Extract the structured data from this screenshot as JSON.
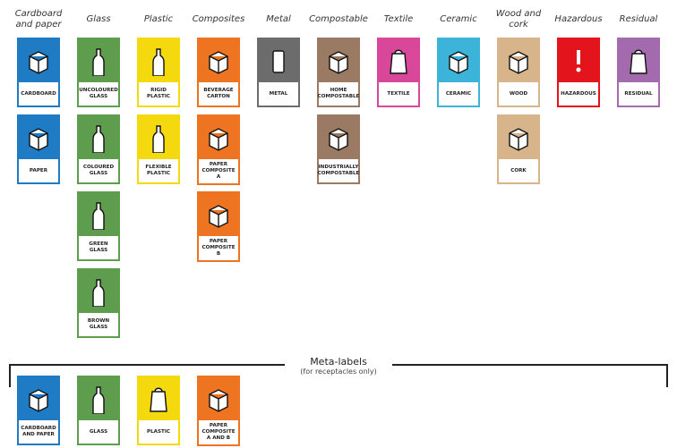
{
  "columns": [
    {
      "header": "Cardboard and paper",
      "color": "#1f7cc4",
      "labels": [
        "CARDBOARD",
        "PAPER"
      ]
    },
    {
      "header": "Glass",
      "color": "#5f9d4e",
      "labels": [
        "UNCOLOURED GLASS",
        "COLOURED GLASS",
        "GREEN GLASS",
        "BROWN GLASS"
      ]
    },
    {
      "header": "Plastic",
      "color": "#f5d90f",
      "labels": [
        "RIGID PLASTIC",
        "FLEXIBLE PLASTIC"
      ]
    },
    {
      "header": "Composites",
      "color": "#ee7421",
      "labels": [
        "BEVERAGE CARTON",
        "PAPER COMPOSITE A",
        "PAPER COMPOSITE B"
      ]
    },
    {
      "header": "Metal",
      "color": "#6c6c6c",
      "labels": [
        "METAL"
      ]
    },
    {
      "header": "Compostable",
      "color": "#9b7a63",
      "labels": [
        "HOME COMPOSTABLE",
        "INDUSTRIALLY COMPOSTABLE"
      ]
    },
    {
      "header": "Textile",
      "color": "#d9479a",
      "labels": [
        "TEXTILE"
      ]
    },
    {
      "header": "Ceramic",
      "color": "#3cb4da",
      "labels": [
        "CERAMIC"
      ]
    },
    {
      "header": "Wood and cork",
      "color": "#d7b489",
      "labels": [
        "WOOD",
        "CORK"
      ]
    },
    {
      "header": "Hazardous",
      "color": "#e3141b",
      "labels": [
        "HAZARDOUS"
      ]
    },
    {
      "header": "Residual",
      "color": "#a46aae",
      "labels": [
        "RESIDUAL"
      ]
    }
  ],
  "meta": {
    "title": "Meta-labels",
    "subtitle": "(for receptacles only)",
    "labels": [
      {
        "label": "CARDBOARD AND PAPER",
        "color": "#1f7cc4"
      },
      {
        "label": "GLASS",
        "color": "#5f9d4e"
      },
      {
        "label": "PLASTIC",
        "color": "#f5d90f"
      },
      {
        "label": "PAPER COMPOSITE A AND B",
        "color": "#ee7421"
      }
    ]
  }
}
